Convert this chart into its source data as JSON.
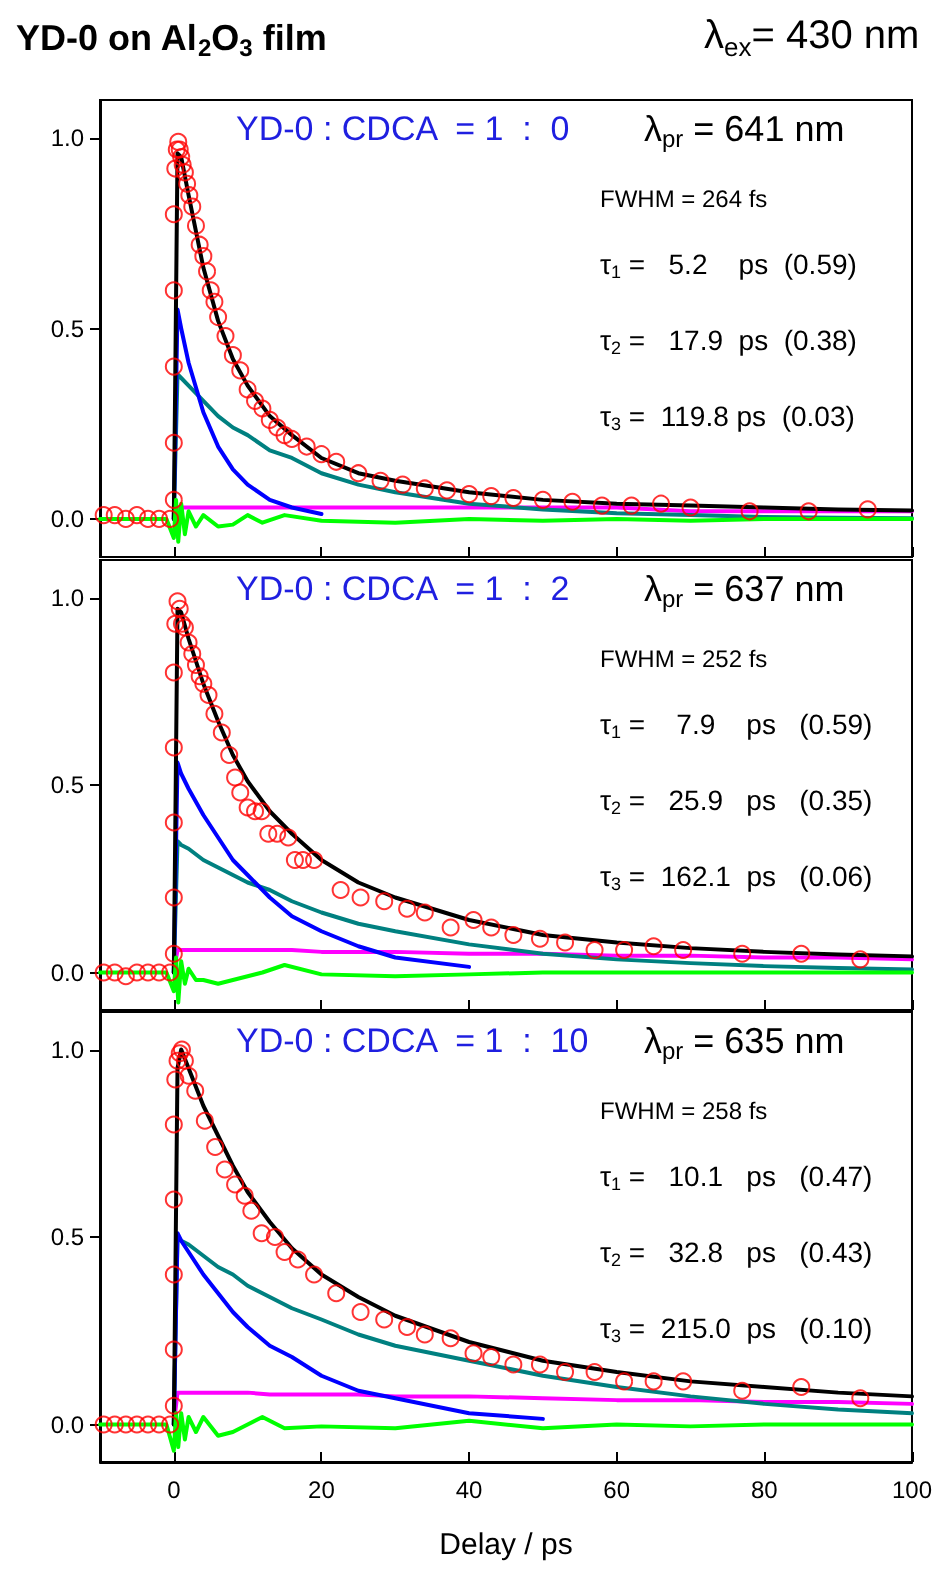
{
  "chart_data": [
    {
      "type": "line",
      "title": "YD-0 on Al$_{2}$O$_{3}$ film",
      "subtitle": "λ$_{ex}$= 430 nm",
      "annotations": [
        "YD-0 : CDCA  = 1  :  0",
        "λ$_{pr}$ = 641 nm",
        "FWHM = 264 fs",
        "τ$_{1}$ =   5.2    ps  (0.59)",
        "τ$_{2}$ =   17.9  ps  (0.38)",
        "τ$_{3}$ =  119.8 ps  (0.03)"
      ],
      "xlim": [
        -10,
        100
      ],
      "xticks": [
        {
          "value": 0,
          "label": null
        },
        {
          "value": 20,
          "label": null
        },
        {
          "value": 40,
          "label": null
        },
        {
          "value": 60,
          "label": null
        },
        {
          "value": 80,
          "label": null
        },
        {
          "value": 100,
          "label": null
        }
      ],
      "ylim": [
        -0.1,
        1.1
      ],
      "yticks": [
        {
          "value": 0,
          "label": "0.0"
        },
        {
          "value": 0.5,
          "label": "0.5"
        },
        {
          "value": 1,
          "label": "1.0"
        }
      ],
      "tick_labels": "y",
      "series": [
        {
          "type": "scatter",
          "marker": "circle",
          "color": "#ff0000",
          "x": [
            -9.5,
            -8,
            -6.5,
            -5,
            -3.5,
            -2,
            -0.5,
            0,
            0,
            0,
            0,
            0,
            0.2,
            0.4,
            0.6,
            0.8,
            1,
            1.2,
            1.5,
            1.8,
            2.1,
            2.5,
            3,
            3.5,
            4,
            4.5,
            5,
            5.5,
            6,
            7,
            8,
            9,
            10,
            11,
            12,
            13,
            14,
            15,
            16,
            18,
            20,
            22,
            25,
            28,
            31,
            34,
            37,
            40,
            43,
            46,
            50,
            54,
            58,
            62,
            66,
            70,
            78,
            86,
            94
          ],
          "values": [
            0.01,
            0.01,
            0.0,
            0.01,
            0,
            0,
            0,
            0.05,
            0.2,
            0.4,
            0.6,
            0.8,
            0.92,
            0.97,
            0.99,
            0.97,
            0.95,
            0.93,
            0.91,
            0.88,
            0.85,
            0.82,
            0.77,
            0.72,
            0.69,
            0.65,
            0.6,
            0.57,
            0.53,
            0.48,
            0.43,
            0.39,
            0.34,
            0.31,
            0.29,
            0.26,
            0.24,
            0.22,
            0.21,
            0.19,
            0.17,
            0.15,
            0.12,
            0.1,
            0.09,
            0.08,
            0.075,
            0.065,
            0.06,
            0.055,
            0.05,
            0.045,
            0.035,
            0.035,
            0.04,
            0.03,
            0.02,
            0.02,
            0.025
          ]
        },
        {
          "color": "#ff00ff",
          "x": [
            0,
            0.5,
            1,
            2,
            4,
            6,
            8,
            10,
            13,
            16,
            20,
            25,
            30,
            40,
            50,
            60,
            70,
            80,
            90,
            100
          ],
          "values": [
            0,
            0.03,
            0.03,
            0.03,
            0.03,
            0.03,
            0.03,
            0.03,
            0.03,
            0.03,
            0.03,
            0.03,
            0.03,
            0.03,
            0.03,
            0.03,
            0.02,
            0.02,
            0.02,
            0.02
          ]
        },
        {
          "color": "#008080",
          "x": [
            0,
            0.5,
            1,
            2,
            4,
            6,
            8,
            10,
            13,
            16,
            20,
            25,
            30,
            40,
            50,
            60,
            70,
            80,
            90,
            100
          ],
          "values": [
            0,
            0.38,
            0.37,
            0.35,
            0.31,
            0.27,
            0.24,
            0.22,
            0.18,
            0.16,
            0.12,
            0.09,
            0.07,
            0.04,
            0.025,
            0.015,
            0.01,
            0.005,
            0.003,
            0.002
          ]
        },
        {
          "color": "#0000ff",
          "x": [
            0,
            0.5,
            1,
            2,
            4,
            6,
            8,
            10,
            13,
            16,
            20
          ],
          "values": [
            0,
            0.55,
            0.5,
            0.41,
            0.28,
            0.19,
            0.13,
            0.09,
            0.05,
            0.03,
            0.013
          ]
        },
        {
          "color": "#000000",
          "x": [
            0,
            0.5,
            1,
            2,
            4,
            6,
            8,
            10,
            13,
            16,
            20,
            25,
            30,
            40,
            50,
            60,
            70,
            80,
            90,
            100
          ],
          "values": [
            0,
            0.96,
            0.95,
            0.85,
            0.66,
            0.52,
            0.42,
            0.35,
            0.27,
            0.22,
            0.16,
            0.12,
            0.1,
            0.07,
            0.05,
            0.04,
            0.035,
            0.03,
            0.025,
            0.022
          ]
        },
        {
          "color": "#00ff00",
          "x": [
            -10,
            -1,
            0,
            0.3,
            0.6,
            1,
            1.5,
            2,
            3,
            4,
            6,
            8,
            10,
            12,
            15,
            20,
            30,
            40,
            50,
            60,
            70,
            80,
            90,
            100
          ],
          "values": [
            0,
            0,
            -0.05,
            0.05,
            -0.06,
            0.04,
            -0.04,
            0.02,
            -0.02,
            0.01,
            -0.02,
            -0.015,
            0.01,
            -0.01,
            0.01,
            -0.005,
            -0.01,
            0,
            -0.005,
            0,
            -0.005,
            0,
            0,
            0
          ]
        }
      ]
    },
    {
      "type": "line",
      "annotations": [
        "YD-0 : CDCA  = 1  :  2",
        "λ$_{pr}$ = 637 nm",
        "FWHM = 252 fs",
        "τ$_{1}$ =    7.9    ps   (0.59)",
        "τ$_{2}$ =   25.9   ps   (0.35)",
        "τ$_{3}$ =  162.1  ps   (0.06)"
      ],
      "xlim": [
        -10,
        100
      ],
      "xticks": [
        {
          "value": 0,
          "label": null
        },
        {
          "value": 20,
          "label": null
        },
        {
          "value": 40,
          "label": null
        },
        {
          "value": 60,
          "label": null
        },
        {
          "value": 80,
          "label": null
        },
        {
          "value": 100,
          "label": null
        }
      ],
      "ylim": [
        -0.1,
        1.1
      ],
      "yticks": [
        {
          "value": 0,
          "label": "0.0"
        },
        {
          "value": 0.5,
          "label": "0.5"
        },
        {
          "value": 1,
          "label": "1.0"
        }
      ],
      "tick_labels": "y",
      "series": [
        {
          "type": "scatter",
          "marker": "circle",
          "color": "#ff0000",
          "x": [
            -9.5,
            -8,
            -6.5,
            -5,
            -3.5,
            -2,
            -0.5,
            0,
            0,
            0,
            0,
            0,
            0.2,
            0.5,
            0.8,
            1.1,
            1.5,
            2,
            2.5,
            3,
            3.5,
            4,
            4.7,
            5.5,
            6.5,
            7.5,
            8.3,
            9,
            10,
            11,
            11.9,
            12.8,
            14,
            15.5,
            16.4,
            17.5,
            19,
            22.6,
            25.3,
            28.5,
            31.6,
            34,
            37.5,
            40.6,
            43,
            46,
            49.6,
            53,
            57,
            61,
            65,
            69,
            77,
            85,
            93
          ],
          "values": [
            0,
            0,
            -0.01,
            0,
            0,
            0,
            0,
            0.05,
            0.2,
            0.4,
            0.6,
            0.8,
            0.93,
            0.99,
            0.97,
            0.93,
            0.92,
            0.88,
            0.85,
            0.82,
            0.79,
            0.77,
            0.74,
            0.69,
            0.64,
            0.58,
            0.52,
            0.48,
            0.44,
            0.43,
            0.43,
            0.37,
            0.37,
            0.36,
            0.3,
            0.3,
            0.3,
            0.22,
            0.2,
            0.19,
            0.17,
            0.16,
            0.12,
            0.14,
            0.12,
            0.1,
            0.09,
            0.08,
            0.06,
            0.06,
            0.07,
            0.06,
            0.05,
            0.05,
            0.035
          ]
        },
        {
          "color": "#ff00ff",
          "x": [
            0,
            0.5,
            1,
            2,
            4,
            6,
            8,
            10,
            13,
            16,
            20,
            25,
            30,
            40,
            50,
            60,
            70,
            80,
            90,
            100
          ],
          "values": [
            0,
            0.06,
            0.06,
            0.06,
            0.06,
            0.06,
            0.06,
            0.06,
            0.06,
            0.06,
            0.055,
            0.055,
            0.055,
            0.05,
            0.05,
            0.045,
            0.045,
            0.04,
            0.04,
            0.035
          ]
        },
        {
          "color": "#008080",
          "x": [
            0,
            0.5,
            1,
            2,
            4,
            6,
            8,
            10,
            13,
            16,
            20,
            25,
            30,
            40,
            50,
            60,
            70,
            80,
            90,
            100
          ],
          "values": [
            0,
            0.35,
            0.34,
            0.33,
            0.3,
            0.28,
            0.26,
            0.24,
            0.22,
            0.19,
            0.16,
            0.13,
            0.11,
            0.075,
            0.05,
            0.035,
            0.025,
            0.017,
            0.012,
            0.008
          ]
        },
        {
          "color": "#0000ff",
          "x": [
            0,
            0.5,
            1,
            2,
            4,
            6,
            8,
            10,
            13,
            16,
            20,
            25,
            30,
            40
          ],
          "values": [
            0,
            0.56,
            0.53,
            0.49,
            0.42,
            0.36,
            0.3,
            0.26,
            0.2,
            0.15,
            0.11,
            0.07,
            0.04,
            0.015
          ]
        },
        {
          "color": "#000000",
          "x": [
            0,
            0.5,
            1,
            2,
            4,
            6,
            8,
            10,
            13,
            16,
            20,
            25,
            30,
            40,
            50,
            60,
            70,
            80,
            90,
            100
          ],
          "values": [
            0,
            0.97,
            0.96,
            0.89,
            0.77,
            0.67,
            0.58,
            0.51,
            0.43,
            0.37,
            0.3,
            0.24,
            0.2,
            0.14,
            0.1,
            0.08,
            0.065,
            0.055,
            0.048,
            0.043
          ]
        },
        {
          "color": "#00ff00",
          "x": [
            -10,
            -1,
            0,
            0.3,
            0.6,
            1,
            1.5,
            2,
            3,
            4,
            6,
            8,
            10,
            12,
            15,
            20,
            30,
            40,
            50,
            60,
            70,
            80,
            90,
            100
          ],
          "values": [
            0,
            0,
            -0.05,
            0.04,
            -0.08,
            0.03,
            -0.03,
            0.01,
            -0.02,
            -0.02,
            -0.03,
            -0.02,
            -0.01,
            0,
            0.02,
            -0.005,
            -0.01,
            -0.005,
            0,
            0,
            0,
            0,
            0,
            0
          ]
        }
      ]
    },
    {
      "type": "line",
      "xlabel": "Delay / ps",
      "annotations": [
        "YD-0 : CDCA  = 1  :  10",
        "λ$_{pr}$ = 635 nm",
        "FWHM = 258 fs",
        "τ$_{1}$ =   10.1   ps   (0.47)",
        "τ$_{2}$ =   32.8   ps   (0.43)",
        "τ$_{3}$ =  215.0  ps   (0.10)"
      ],
      "xlim": [
        -10,
        100
      ],
      "xticks": [
        0,
        20,
        40,
        60,
        80,
        100
      ],
      "ylim": [
        -0.1,
        1.1
      ],
      "yticks": [
        {
          "value": 0,
          "label": "0.0"
        },
        {
          "value": 0.5,
          "label": "0.5"
        },
        {
          "value": 1,
          "label": "1.0"
        }
      ],
      "series": [
        {
          "type": "scatter",
          "marker": "circle",
          "color": "#ff0000",
          "x": [
            -9.5,
            -8,
            -6.5,
            -5,
            -3.5,
            -2,
            -0.5,
            0,
            0,
            0,
            0,
            0,
            0.2,
            0.5,
            0.8,
            1.1,
            1.5,
            2,
            2.9,
            4.2,
            5.6,
            6.9,
            8.3,
            9.6,
            10.5,
            11.9,
            13.7,
            15,
            16.8,
            19,
            22,
            25.3,
            28.5,
            31.6,
            34,
            37.5,
            40.6,
            43,
            46,
            49.6,
            53,
            57,
            61,
            65,
            69,
            77,
            85,
            93
          ],
          "values": [
            0,
            0,
            0,
            0,
            0,
            0,
            0,
            0.05,
            0.2,
            0.4,
            0.6,
            0.8,
            0.92,
            0.97,
            0.99,
            1.0,
            0.97,
            0.93,
            0.89,
            0.81,
            0.74,
            0.68,
            0.64,
            0.61,
            0.57,
            0.51,
            0.5,
            0.46,
            0.44,
            0.4,
            0.35,
            0.3,
            0.28,
            0.26,
            0.24,
            0.23,
            0.19,
            0.18,
            0.16,
            0.16,
            0.14,
            0.14,
            0.115,
            0.115,
            0.115,
            0.09,
            0.1,
            0.07
          ]
        },
        {
          "color": "#ff00ff",
          "x": [
            0,
            0.5,
            1,
            2,
            4,
            6,
            8,
            10,
            13,
            16,
            20,
            25,
            30,
            40,
            50,
            60,
            70,
            80,
            90,
            100
          ],
          "values": [
            0,
            0.085,
            0.085,
            0.085,
            0.085,
            0.085,
            0.085,
            0.085,
            0.08,
            0.08,
            0.08,
            0.08,
            0.075,
            0.075,
            0.07,
            0.065,
            0.065,
            0.06,
            0.06,
            0.055
          ]
        },
        {
          "color": "#008080",
          "x": [
            0,
            0.5,
            1,
            2,
            4,
            6,
            8,
            10,
            13,
            16,
            20,
            25,
            30,
            40,
            50,
            60,
            70,
            80,
            90,
            100
          ],
          "values": [
            0,
            0.5,
            0.49,
            0.48,
            0.45,
            0.42,
            0.4,
            0.37,
            0.34,
            0.31,
            0.28,
            0.24,
            0.21,
            0.17,
            0.13,
            0.1,
            0.075,
            0.055,
            0.04,
            0.03
          ]
        },
        {
          "color": "#0000ff",
          "x": [
            0,
            0.5,
            1,
            2,
            4,
            6,
            8,
            10,
            13,
            16,
            20,
            25,
            30,
            40,
            50
          ],
          "values": [
            0,
            0.51,
            0.49,
            0.46,
            0.4,
            0.35,
            0.3,
            0.26,
            0.21,
            0.18,
            0.13,
            0.09,
            0.07,
            0.03,
            0.015
          ]
        },
        {
          "color": "#000000",
          "x": [
            0,
            0.5,
            1,
            2,
            4,
            6,
            8,
            10,
            13,
            16,
            20,
            25,
            30,
            40,
            50,
            60,
            70,
            80,
            90,
            100
          ],
          "values": [
            0,
            0.95,
            1.0,
            0.95,
            0.85,
            0.77,
            0.69,
            0.62,
            0.54,
            0.47,
            0.4,
            0.34,
            0.29,
            0.22,
            0.17,
            0.14,
            0.115,
            0.1,
            0.085,
            0.075
          ]
        },
        {
          "color": "#00ff00",
          "x": [
            -10,
            -1,
            0,
            0.3,
            0.6,
            1,
            1.5,
            2,
            3,
            4,
            6,
            8,
            10,
            12,
            15,
            20,
            30,
            40,
            50,
            60,
            70,
            80,
            90,
            100
          ],
          "values": [
            0,
            0,
            -0.07,
            0.03,
            -0.06,
            0.03,
            -0.04,
            0.02,
            -0.02,
            0.02,
            -0.03,
            -0.02,
            0,
            0.02,
            -0.01,
            -0.005,
            -0.01,
            0.01,
            -0.01,
            0,
            -0.005,
            0,
            0,
            0
          ]
        }
      ]
    }
  ]
}
